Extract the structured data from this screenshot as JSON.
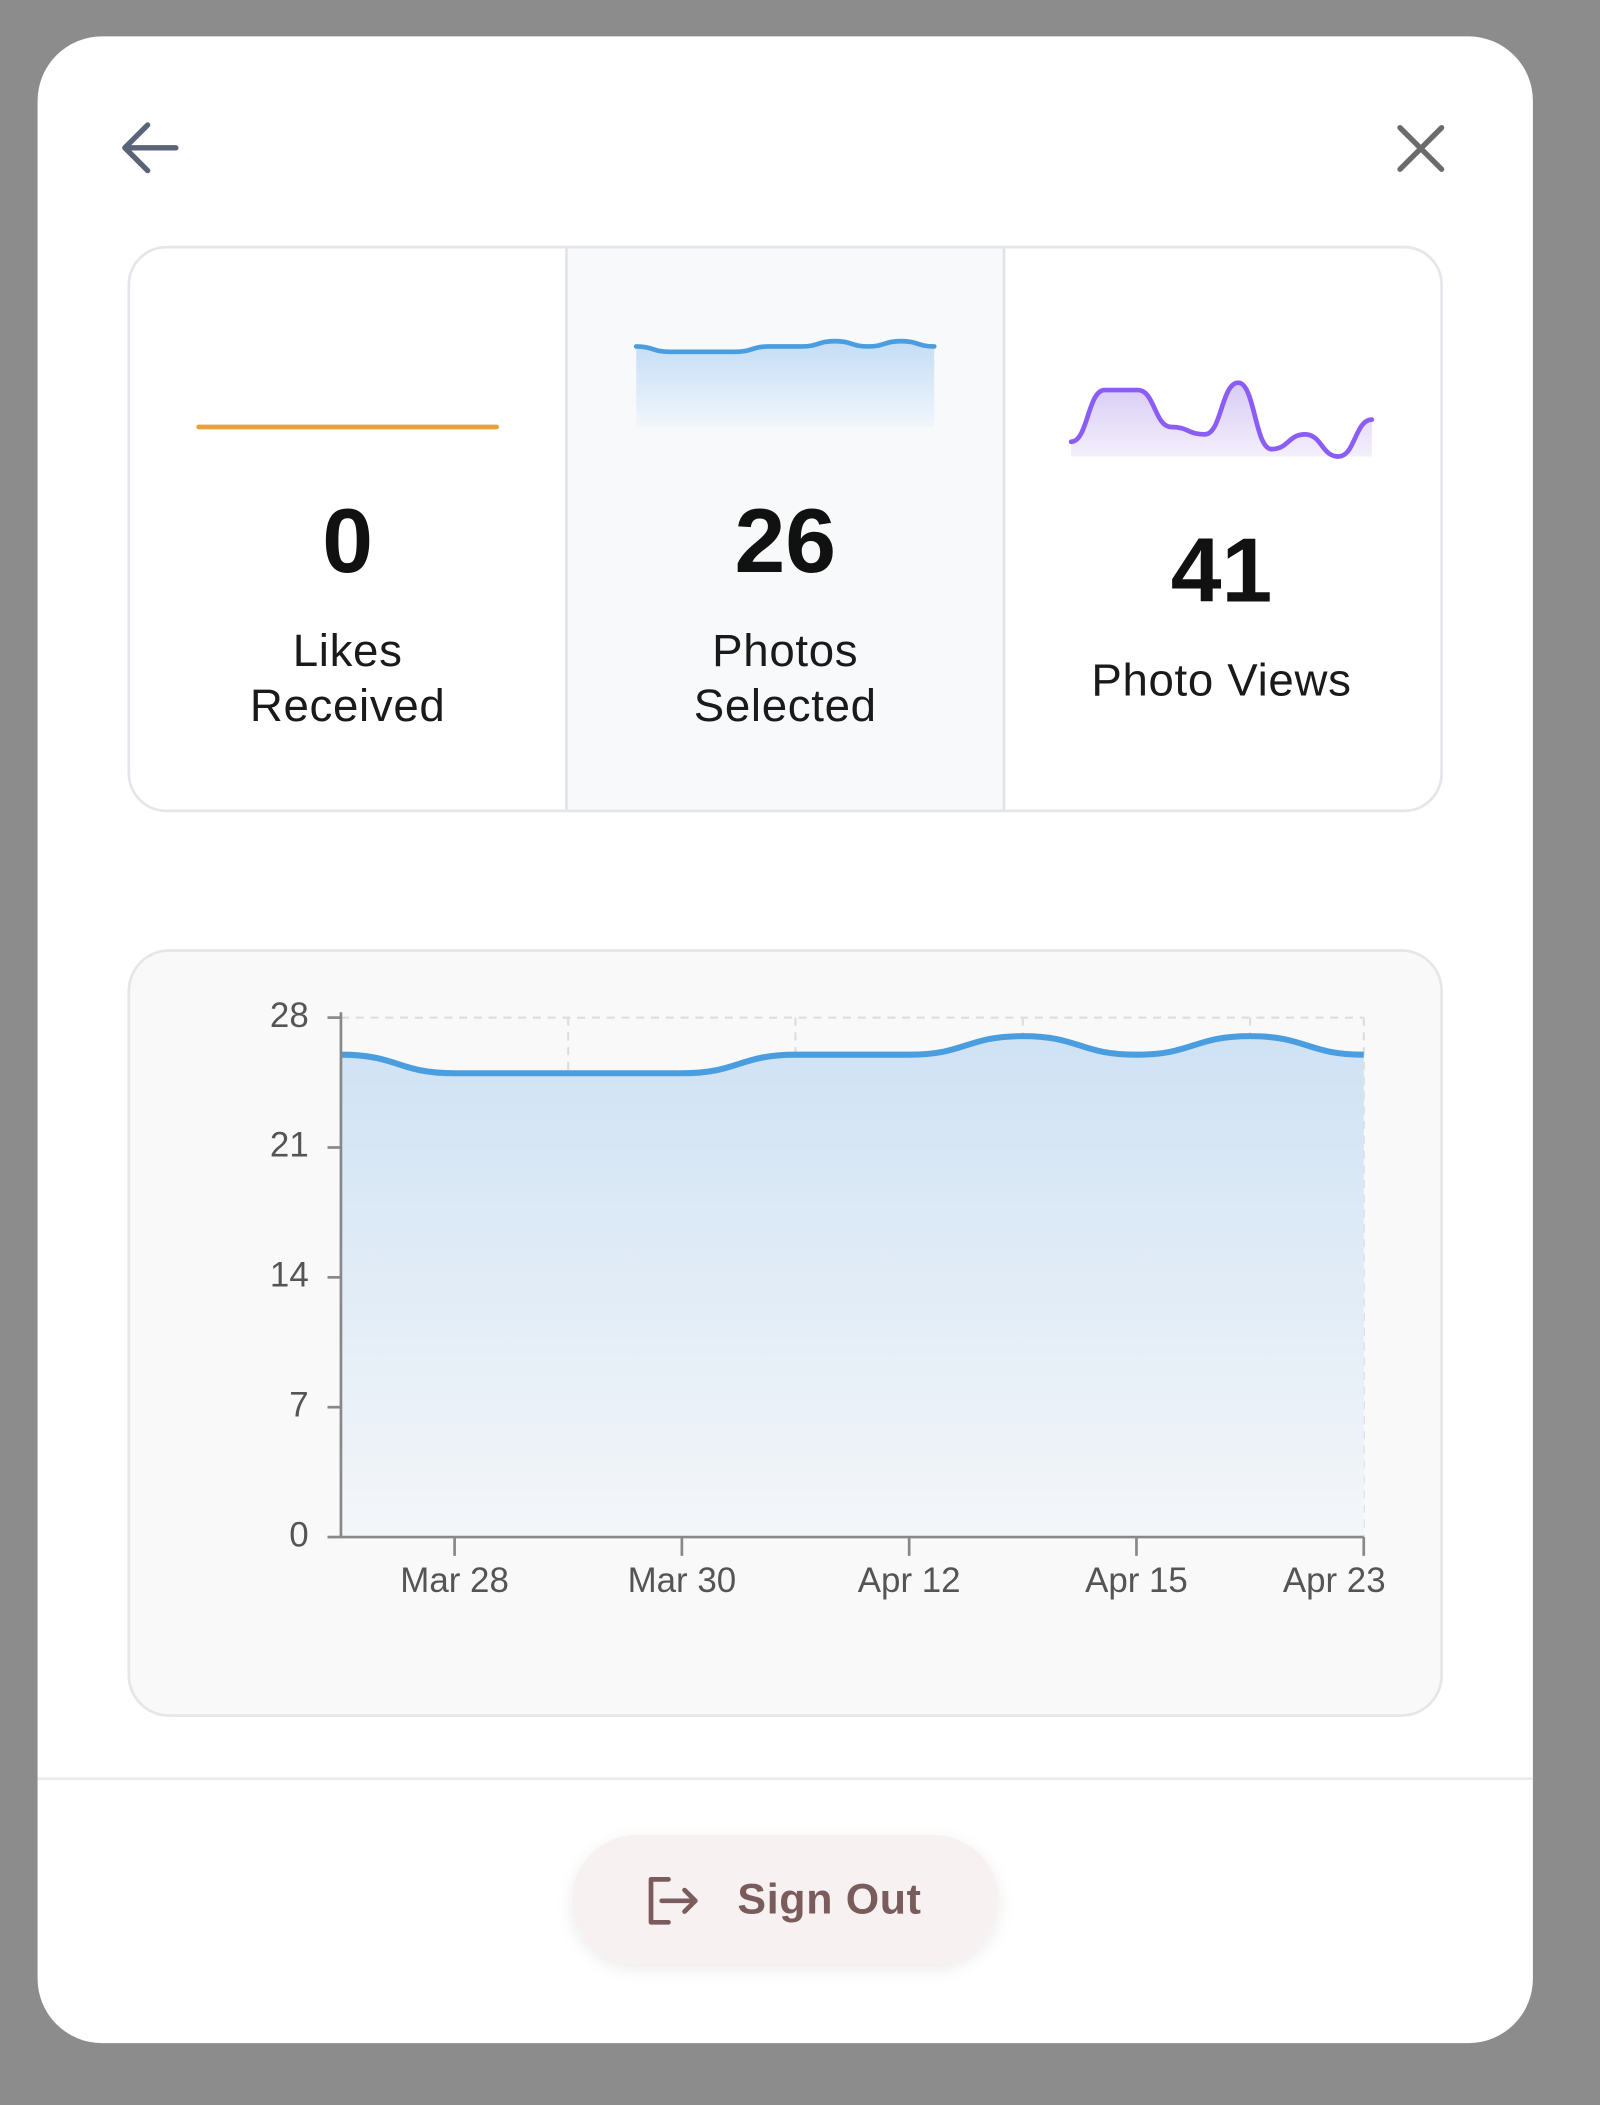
{
  "stats": [
    {
      "value": 0,
      "label": "Likes Received",
      "spark": [
        0,
        0,
        0,
        0,
        0,
        0,
        0,
        0,
        0,
        0
      ]
    },
    {
      "value": 26,
      "label": "Photos Selected",
      "spark": [
        26,
        25,
        25,
        25,
        26,
        26,
        27,
        26,
        27,
        26
      ]
    },
    {
      "value": 41,
      "label": "Photo Views",
      "spark": [
        2,
        9,
        9,
        4,
        3,
        10,
        1,
        3,
        0,
        5
      ]
    }
  ],
  "chart_data": {
    "type": "line",
    "categories": [
      null,
      "Mar 28",
      null,
      "Mar 30",
      null,
      "Apr 12",
      null,
      "Apr 15",
      null,
      "Apr 23"
    ],
    "series": [
      {
        "color": "#4a9ee0",
        "values": [
          26,
          25,
          25,
          25,
          26,
          26,
          27,
          26,
          27,
          26
        ]
      }
    ],
    "ylim": [
      0,
      28
    ],
    "yticks": [
      0,
      7,
      14,
      21,
      28
    ],
    "grid": true
  },
  "sign_out": "Sign Out"
}
